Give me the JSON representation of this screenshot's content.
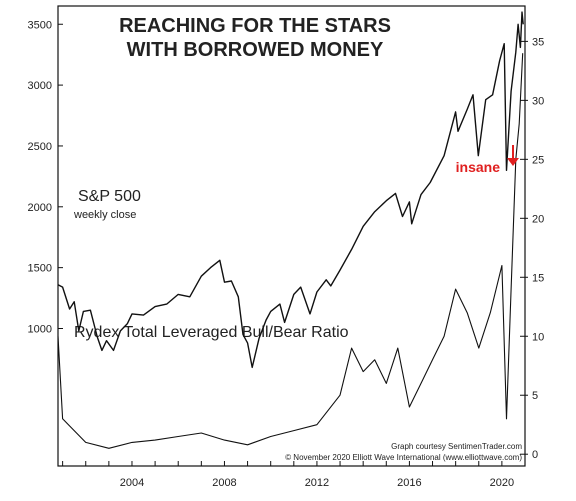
{
  "chart_data": {
    "type": "line",
    "title": [
      "REACHING FOR THE STARS",
      "WITH BORROWED MONEY"
    ],
    "x": {
      "range": [
        2000.8,
        2021.0
      ],
      "tick_labels": [
        "2004",
        "2008",
        "2012",
        "2016",
        "2020"
      ],
      "tick_values": [
        2004,
        2008,
        2012,
        2016,
        2020
      ]
    },
    "y_left": {
      "range": [
        -130,
        3650
      ],
      "tick_values": [
        1000,
        1500,
        2000,
        2500,
        3000,
        3500
      ],
      "tick_labels": [
        "1000",
        "1500",
        "2000",
        "2500",
        "3000",
        "3500"
      ]
    },
    "y_right": {
      "range": [
        -1,
        38
      ],
      "tick_values": [
        0,
        5,
        10,
        15,
        20,
        25,
        30,
        35
      ],
      "tick_labels": [
        "0",
        "5",
        "10",
        "15",
        "20",
        "25",
        "30",
        "35"
      ]
    },
    "series": [
      {
        "name": "S&P 500",
        "sublabel": "weekly close",
        "axis": "left",
        "points": [
          [
            2000.8,
            1360
          ],
          [
            2001.0,
            1340
          ],
          [
            2001.3,
            1160
          ],
          [
            2001.5,
            1220
          ],
          [
            2001.7,
            980
          ],
          [
            2001.9,
            1140
          ],
          [
            2002.2,
            1150
          ],
          [
            2002.5,
            930
          ],
          [
            2002.7,
            820
          ],
          [
            2002.9,
            900
          ],
          [
            2003.2,
            820
          ],
          [
            2003.5,
            980
          ],
          [
            2003.8,
            1040
          ],
          [
            2004.0,
            1120
          ],
          [
            2004.5,
            1110
          ],
          [
            2005.0,
            1180
          ],
          [
            2005.5,
            1200
          ],
          [
            2006.0,
            1280
          ],
          [
            2006.5,
            1260
          ],
          [
            2007.0,
            1430
          ],
          [
            2007.4,
            1500
          ],
          [
            2007.8,
            1560
          ],
          [
            2008.0,
            1380
          ],
          [
            2008.3,
            1390
          ],
          [
            2008.6,
            1260
          ],
          [
            2008.8,
            950
          ],
          [
            2009.0,
            880
          ],
          [
            2009.2,
            680
          ],
          [
            2009.5,
            920
          ],
          [
            2009.8,
            1070
          ],
          [
            2010.0,
            1140
          ],
          [
            2010.4,
            1200
          ],
          [
            2010.6,
            1050
          ],
          [
            2011.0,
            1280
          ],
          [
            2011.3,
            1340
          ],
          [
            2011.7,
            1120
          ],
          [
            2012.0,
            1300
          ],
          [
            2012.4,
            1400
          ],
          [
            2012.6,
            1350
          ],
          [
            2013.0,
            1480
          ],
          [
            2013.5,
            1650
          ],
          [
            2014.0,
            1840
          ],
          [
            2014.5,
            1960
          ],
          [
            2015.0,
            2050
          ],
          [
            2015.4,
            2110
          ],
          [
            2015.7,
            1920
          ],
          [
            2016.0,
            2040
          ],
          [
            2016.1,
            1860
          ],
          [
            2016.5,
            2100
          ],
          [
            2016.9,
            2200
          ],
          [
            2017.5,
            2420
          ],
          [
            2018.0,
            2780
          ],
          [
            2018.1,
            2620
          ],
          [
            2018.5,
            2800
          ],
          [
            2018.75,
            2920
          ],
          [
            2018.98,
            2420
          ],
          [
            2019.3,
            2880
          ],
          [
            2019.6,
            2920
          ],
          [
            2019.9,
            3200
          ],
          [
            2020.1,
            3340
          ],
          [
            2020.2,
            2300
          ],
          [
            2020.4,
            2950
          ],
          [
            2020.6,
            3270
          ],
          [
            2020.7,
            3500
          ],
          [
            2020.8,
            3310
          ],
          [
            2020.87,
            3600
          ],
          [
            2020.92,
            3500
          ]
        ]
      },
      {
        "name": "Rydex Total Leveraged Bull/Bear Ratio",
        "axis": "right",
        "points": [
          [
            2000.8,
            10
          ],
          [
            2001.0,
            3
          ],
          [
            2001.5,
            2
          ],
          [
            2002.0,
            1
          ],
          [
            2003.0,
            0.5
          ],
          [
            2004.0,
            1
          ],
          [
            2005.0,
            1.2
          ],
          [
            2006.0,
            1.5
          ],
          [
            2007.0,
            1.8
          ],
          [
            2008.0,
            1.2
          ],
          [
            2009.0,
            0.8
          ],
          [
            2010.0,
            1.5
          ],
          [
            2011.0,
            2.0
          ],
          [
            2012.0,
            2.5
          ],
          [
            2013.0,
            5
          ],
          [
            2013.5,
            9
          ],
          [
            2014.0,
            7
          ],
          [
            2014.5,
            8
          ],
          [
            2015.0,
            6
          ],
          [
            2015.5,
            9
          ],
          [
            2016.0,
            4
          ],
          [
            2016.5,
            6
          ],
          [
            2017.0,
            8
          ],
          [
            2017.5,
            10
          ],
          [
            2018.0,
            14
          ],
          [
            2018.5,
            12
          ],
          [
            2019.0,
            9
          ],
          [
            2019.5,
            12
          ],
          [
            2020.0,
            16
          ],
          [
            2020.2,
            3
          ],
          [
            2020.4,
            14
          ],
          [
            2020.6,
            25
          ],
          [
            2020.75,
            28
          ],
          [
            2020.9,
            34
          ]
        ]
      }
    ],
    "annotation": {
      "text": "insane",
      "color": "#e02020",
      "x": 2020.9,
      "y_left": 1950
    },
    "credits": [
      "Graph courtesy SentimenTrader.com",
      "© November 2020 Elliott Wave International (www.elliottwave.com)"
    ],
    "line_color": "#111111",
    "accent_color": "#e02020",
    "grid": false,
    "legend": "none"
  }
}
